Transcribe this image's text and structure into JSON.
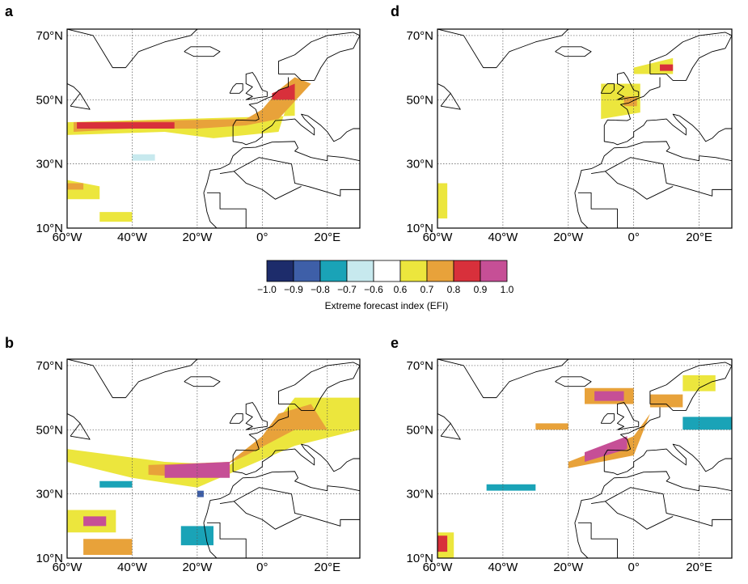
{
  "figure": {
    "panels": [
      {
        "letter": "a",
        "lat_labels": [
          "70°N",
          "50°N",
          "30°N",
          "10°N"
        ],
        "lon_labels": [
          "60°W",
          "40°W",
          "20°W",
          "0°",
          "20°E"
        ]
      },
      {
        "letter": "d",
        "lat_labels": [
          "70°N",
          "50°N",
          "30°N",
          "10°N"
        ],
        "lon_labels": [
          "60°W",
          "40°W",
          "20°W",
          "0°",
          "20°E"
        ]
      },
      {
        "letter": "b",
        "lat_labels": [
          "70°N",
          "50°N",
          "30°N",
          "10°N"
        ],
        "lon_labels": [
          "60°W",
          "40°W",
          "20°W",
          "0°",
          "20°E"
        ]
      },
      {
        "letter": "e",
        "lat_labels": [
          "70°N",
          "50°N",
          "30°N",
          "10°N"
        ],
        "lon_labels": [
          "60°W",
          "40°W",
          "20°W",
          "0°",
          "20°E"
        ]
      }
    ],
    "colorbar": {
      "title": "Extreme forecast index (EFI)",
      "ticks": [
        "−1.0",
        "−0.9",
        "−0.8",
        "−0.7",
        "−0.6",
        "0.6",
        "0.7",
        "0.8",
        "0.9",
        "1.0"
      ],
      "colors": [
        "#1d2c6b",
        "#3e5fa8",
        "#1aa3b7",
        "#c7e9ee",
        "#ffffff",
        "#ece63d",
        "#e8a23a",
        "#d8303b",
        "#c64f96"
      ]
    }
  },
  "chart_data": [
    {
      "type": "heatmap",
      "panel": "a",
      "xlim": [
        -60,
        30
      ],
      "ylim": [
        10,
        72
      ],
      "xticks": [
        -60,
        -40,
        -20,
        0,
        20
      ],
      "yticks": [
        70,
        50,
        30,
        10
      ],
      "grid": true,
      "colorscale": "EFI",
      "regions": [
        {
          "efi": 0.65,
          "lon": [
            -60,
            10,
            10,
            5,
            -15,
            -30,
            -60
          ],
          "lat": [
            43,
            45,
            56,
            40,
            38,
            40,
            39
          ]
        },
        {
          "efi": 0.75,
          "lon": [
            -58,
            -5,
            0,
            5,
            10,
            15,
            5,
            -5,
            -20,
            -40,
            -58
          ],
          "lat": [
            43,
            44,
            47,
            53,
            57,
            55,
            44,
            42,
            41,
            41,
            40
          ]
        },
        {
          "efi": 0.85,
          "lon": [
            -57,
            -27,
            -27,
            -57
          ],
          "lat": [
            43,
            43,
            41,
            41
          ]
        },
        {
          "efi": 0.85,
          "lon": [
            3,
            10,
            10,
            3
          ],
          "lat": [
            52,
            55,
            50,
            50
          ]
        },
        {
          "efi": 0.65,
          "lon": [
            -60,
            -50,
            -50,
            -60
          ],
          "lat": [
            25,
            23,
            19,
            19
          ]
        },
        {
          "efi": 0.75,
          "lon": [
            -60,
            -55,
            -55,
            -60
          ],
          "lat": [
            24,
            24,
            22,
            22
          ]
        },
        {
          "efi": 0.65,
          "lon": [
            -50,
            -40,
            -40,
            -50
          ],
          "lat": [
            15,
            15,
            12,
            12
          ]
        },
        {
          "efi": -0.65,
          "lon": [
            -40,
            -33,
            -33,
            -40
          ],
          "lat": [
            33,
            33,
            31,
            31
          ]
        }
      ]
    },
    {
      "type": "heatmap",
      "panel": "d",
      "xlim": [
        -60,
        30
      ],
      "ylim": [
        10,
        72
      ],
      "xticks": [
        -60,
        -40,
        -20,
        0,
        20
      ],
      "yticks": [
        70,
        50,
        30,
        10
      ],
      "grid": true,
      "colorscale": "EFI",
      "regions": [
        {
          "efi": 0.65,
          "lon": [
            -10,
            2,
            2,
            -10
          ],
          "lat": [
            55,
            55,
            46,
            44
          ]
        },
        {
          "efi": 0.75,
          "lon": [
            -3,
            1,
            1,
            -3
          ],
          "lat": [
            51,
            51,
            48,
            48
          ]
        },
        {
          "efi": 0.65,
          "lon": [
            0,
            12,
            12,
            0
          ],
          "lat": [
            60,
            63,
            58,
            58
          ]
        },
        {
          "efi": 0.85,
          "lon": [
            8,
            12,
            12,
            8
          ],
          "lat": [
            61,
            61,
            59,
            59
          ]
        },
        {
          "efi": 0.65,
          "lon": [
            -60,
            -57,
            -57,
            -60
          ],
          "lat": [
            24,
            24,
            13,
            13
          ]
        }
      ]
    },
    {
      "type": "heatmap",
      "panel": "b",
      "xlim": [
        -60,
        30
      ],
      "ylim": [
        10,
        72
      ],
      "xticks": [
        -60,
        -40,
        -20,
        0,
        20
      ],
      "yticks": [
        70,
        50,
        30,
        10
      ],
      "grid": true,
      "colorscale": "EFI",
      "regions": [
        {
          "efi": 0.65,
          "lon": [
            -60,
            -30,
            -10,
            0,
            10,
            30,
            30,
            10,
            -20,
            -40,
            -60
          ],
          "lat": [
            44,
            40,
            39,
            47,
            60,
            60,
            50,
            45,
            32,
            35,
            40
          ]
        },
        {
          "efi": 0.75,
          "lon": [
            -35,
            -10,
            0,
            5,
            15,
            20,
            10,
            -5,
            -20,
            -35
          ],
          "lat": [
            39,
            40,
            48,
            55,
            58,
            50,
            50,
            42,
            35,
            36
          ]
        },
        {
          "efi": 0.95,
          "lon": [
            -30,
            -10,
            -10,
            -30
          ],
          "lat": [
            39,
            40,
            35,
            35
          ]
        },
        {
          "efi": 0.65,
          "lon": [
            -60,
            -45,
            -45,
            -60
          ],
          "lat": [
            25,
            25,
            18,
            18
          ]
        },
        {
          "efi": 0.95,
          "lon": [
            -55,
            -48,
            -48,
            -55
          ],
          "lat": [
            23,
            23,
            20,
            20
          ]
        },
        {
          "efi": 0.75,
          "lon": [
            -55,
            -40,
            -40,
            -55
          ],
          "lat": [
            16,
            16,
            11,
            11
          ]
        },
        {
          "efi": -0.75,
          "lon": [
            -25,
            -15,
            -15,
            -25
          ],
          "lat": [
            20,
            20,
            14,
            14
          ]
        },
        {
          "efi": -0.85,
          "lon": [
            -20,
            -18,
            -18,
            -20
          ],
          "lat": [
            31,
            31,
            29,
            29
          ]
        },
        {
          "efi": -0.75,
          "lon": [
            -50,
            -40,
            -40,
            -50
          ],
          "lat": [
            34,
            34,
            32,
            32
          ]
        }
      ]
    },
    {
      "type": "heatmap",
      "panel": "e",
      "xlim": [
        -60,
        30
      ],
      "ylim": [
        10,
        72
      ],
      "xticks": [
        -60,
        -40,
        -20,
        0,
        20
      ],
      "yticks": [
        70,
        50,
        30,
        10
      ],
      "grid": true,
      "colorscale": "EFI",
      "regions": [
        {
          "efi": 0.75,
          "lon": [
            -20,
            0,
            5,
            0,
            -20
          ],
          "lat": [
            40,
            48,
            55,
            42,
            38
          ]
        },
        {
          "efi": 0.95,
          "lon": [
            -15,
            -2,
            -2,
            -15
          ],
          "lat": [
            43,
            48,
            44,
            40
          ]
        },
        {
          "efi": 0.75,
          "lon": [
            -15,
            0,
            0,
            -15
          ],
          "lat": [
            63,
            63,
            58,
            58
          ]
        },
        {
          "efi": 0.95,
          "lon": [
            -12,
            -3,
            -3,
            -12
          ],
          "lat": [
            62,
            62,
            59,
            59
          ]
        },
        {
          "efi": 0.75,
          "lon": [
            5,
            15,
            15,
            5
          ],
          "lat": [
            61,
            61,
            57,
            57
          ]
        },
        {
          "efi": 0.65,
          "lon": [
            15,
            25,
            25,
            15
          ],
          "lat": [
            67,
            67,
            62,
            62
          ]
        },
        {
          "efi": -0.75,
          "lon": [
            15,
            30,
            30,
            15
          ],
          "lat": [
            54,
            54,
            50,
            50
          ]
        },
        {
          "efi": 0.65,
          "lon": [
            -60,
            -55,
            -55,
            -60
          ],
          "lat": [
            18,
            18,
            10,
            10
          ]
        },
        {
          "efi": 0.85,
          "lon": [
            -60,
            -57,
            -57,
            -60
          ],
          "lat": [
            17,
            17,
            12,
            12
          ]
        },
        {
          "efi": 0.75,
          "lon": [
            -30,
            -20,
            -20,
            -30
          ],
          "lat": [
            52,
            52,
            50,
            50
          ]
        },
        {
          "efi": -0.75,
          "lon": [
            -45,
            -30,
            -30,
            -45
          ],
          "lat": [
            33,
            33,
            31,
            31
          ]
        }
      ]
    }
  ]
}
